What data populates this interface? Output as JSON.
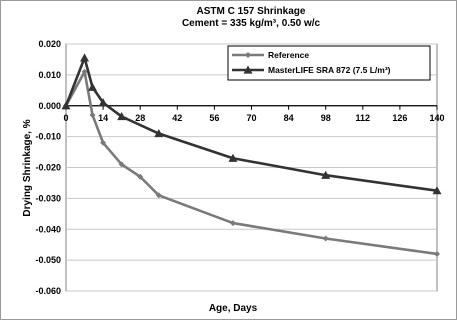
{
  "chart_data": {
    "type": "line",
    "title": "ASTM C 157 Shrinkage",
    "subtitle": "Cement = 335 kg/m³, 0.50 w/c",
    "xlabel": "Age, Days",
    "ylabel": "Drying Shrinkage, %",
    "xlim": [
      0,
      140
    ],
    "ylim": [
      -0.06,
      0.02
    ],
    "xticks": [
      0,
      14,
      28,
      42,
      56,
      70,
      84,
      98,
      112,
      126,
      140
    ],
    "yticks": [
      0.02,
      0.01,
      0.0,
      -0.01,
      -0.02,
      -0.03,
      -0.04,
      -0.05,
      -0.06
    ],
    "ytick_labels": [
      "0.020",
      "0.010",
      "0.000",
      "-0.010",
      "-0.020",
      "-0.030",
      "-0.040",
      "-0.050",
      "-0.060"
    ],
    "grid": "horizontal",
    "legend_position": "top-right",
    "series": [
      {
        "name": "Reference",
        "color": "#7a7a7a",
        "marker": "diamond",
        "x": [
          0,
          7,
          10,
          14,
          21,
          28,
          35,
          63,
          98,
          140
        ],
        "y": [
          0.0,
          0.011,
          -0.003,
          -0.012,
          -0.019,
          -0.023,
          -0.029,
          -0.038,
          -0.043,
          -0.048
        ]
      },
      {
        "name": "MasterLIFE  SRA 872   (7.5 L/m³)",
        "color": "#333333",
        "marker": "triangle",
        "x": [
          0,
          7,
          10,
          14,
          21,
          35,
          63,
          98,
          140
        ],
        "y": [
          0.0,
          0.0155,
          0.006,
          0.001,
          -0.0035,
          -0.009,
          -0.017,
          -0.0225,
          -0.0275
        ]
      }
    ]
  }
}
